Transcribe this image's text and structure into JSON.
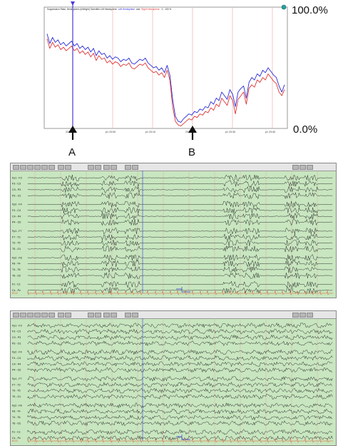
{
  "chart_data": [
    {
      "type": "line",
      "title": "Suppression Ratio, Hemispheric (left/right) Scientific Left Hemisphere and Right Hemisphere  0 - 100 %",
      "title_parts": {
        "prefix": "Suppression Ratio, Hemispheric (left/right) Scientific Left Hemisphere",
        "and": "and",
        "right": "Right Hemisphere",
        "suffix": "0 - 100 %"
      },
      "ylabel": "",
      "xlabel": "",
      "ylim": [
        0,
        100
      ],
      "y_tick_labels": [
        "100.0%",
        "0.0%"
      ],
      "x_tick_labels": [
        "p1 22:50",
        "p1 23:00",
        "p1 23:10",
        "p1 23:20",
        "p1 23:30",
        "p1 23:40"
      ],
      "x_label_display": [
        " 22:50",
        "p1 23:00",
        "p1 23:10",
        " 23:20",
        "p1 23:30",
        "p1 23:40"
      ],
      "grid": true,
      "marker_A": {
        "label": "A",
        "x": 0.14
      },
      "marker_B": {
        "label": "B",
        "x": 0.62
      },
      "series": [
        {
          "name": "Left Hemisphere",
          "color": "#2a2ad8",
          "values": [
            78,
            70,
            75,
            71,
            73,
            69,
            71,
            68,
            70,
            72,
            68,
            70,
            66,
            68,
            65,
            67,
            63,
            66,
            60,
            64,
            61,
            62,
            58,
            60,
            57,
            59,
            58,
            55,
            57,
            56,
            58,
            54,
            53,
            55,
            57,
            56,
            58,
            54,
            52,
            50,
            51,
            48,
            50,
            46,
            52,
            44,
            24,
            10,
            6,
            5,
            8,
            10,
            12,
            11,
            14,
            13,
            16,
            15,
            18,
            17,
            22,
            20,
            25,
            23,
            30,
            27,
            24,
            32,
            28,
            18,
            30,
            33,
            35,
            25,
            38,
            42,
            40,
            45,
            43,
            48,
            46,
            50,
            47,
            44,
            42,
            35,
            30,
            36
          ]
        },
        {
          "name": "Right Hemisphere",
          "color": "#e03434",
          "values": [
            74,
            66,
            71,
            67,
            69,
            65,
            67,
            64,
            66,
            68,
            64,
            66,
            62,
            64,
            61,
            63,
            59,
            62,
            56,
            60,
            57,
            58,
            54,
            56,
            53,
            55,
            54,
            51,
            53,
            52,
            54,
            50,
            49,
            51,
            53,
            52,
            54,
            50,
            48,
            46,
            47,
            44,
            46,
            42,
            48,
            40,
            18,
            6,
            3,
            2,
            4,
            6,
            8,
            7,
            10,
            9,
            12,
            11,
            14,
            13,
            17,
            15,
            20,
            18,
            25,
            22,
            19,
            27,
            23,
            12,
            24,
            27,
            30,
            20,
            33,
            36,
            34,
            40,
            38,
            42,
            40,
            45,
            42,
            39,
            37,
            30,
            27,
            32
          ]
        }
      ]
    },
    {
      "type": "line",
      "title": "",
      "series": [],
      "note_label": "ECGs"
    },
    {
      "type": "line",
      "title": "",
      "series": [],
      "note_label": "ECGs"
    }
  ],
  "trend": {
    "y_top_label": "100.0%",
    "y_bottom_label": "0.0%",
    "marker_a": "A",
    "marker_b": "B"
  },
  "eeg": {
    "channel_labels": [
      "Fp1 - F3",
      "F3 - C3",
      "C3 - P3",
      "P3 - O1",
      "Fp2 - F4",
      "F4 - C4",
      "C4 - P4",
      "P4 - O2",
      "Fp1 - F7",
      "F7 - T3",
      "T3 - T5",
      "T5 - O1",
      "Fp2 - F8",
      "F8 - T4",
      "T4 - T6",
      "T6 - O2",
      "Fz - Cz",
      "Cz - Pz"
    ],
    "ecg_label": "ECG",
    "colors": {
      "background": "#c8e6c0",
      "trace": "#1a1a1a",
      "ecg": "#d85a2a",
      "cursor": "#3a3ad8",
      "minor_grid": "#e8a0a0"
    }
  }
}
